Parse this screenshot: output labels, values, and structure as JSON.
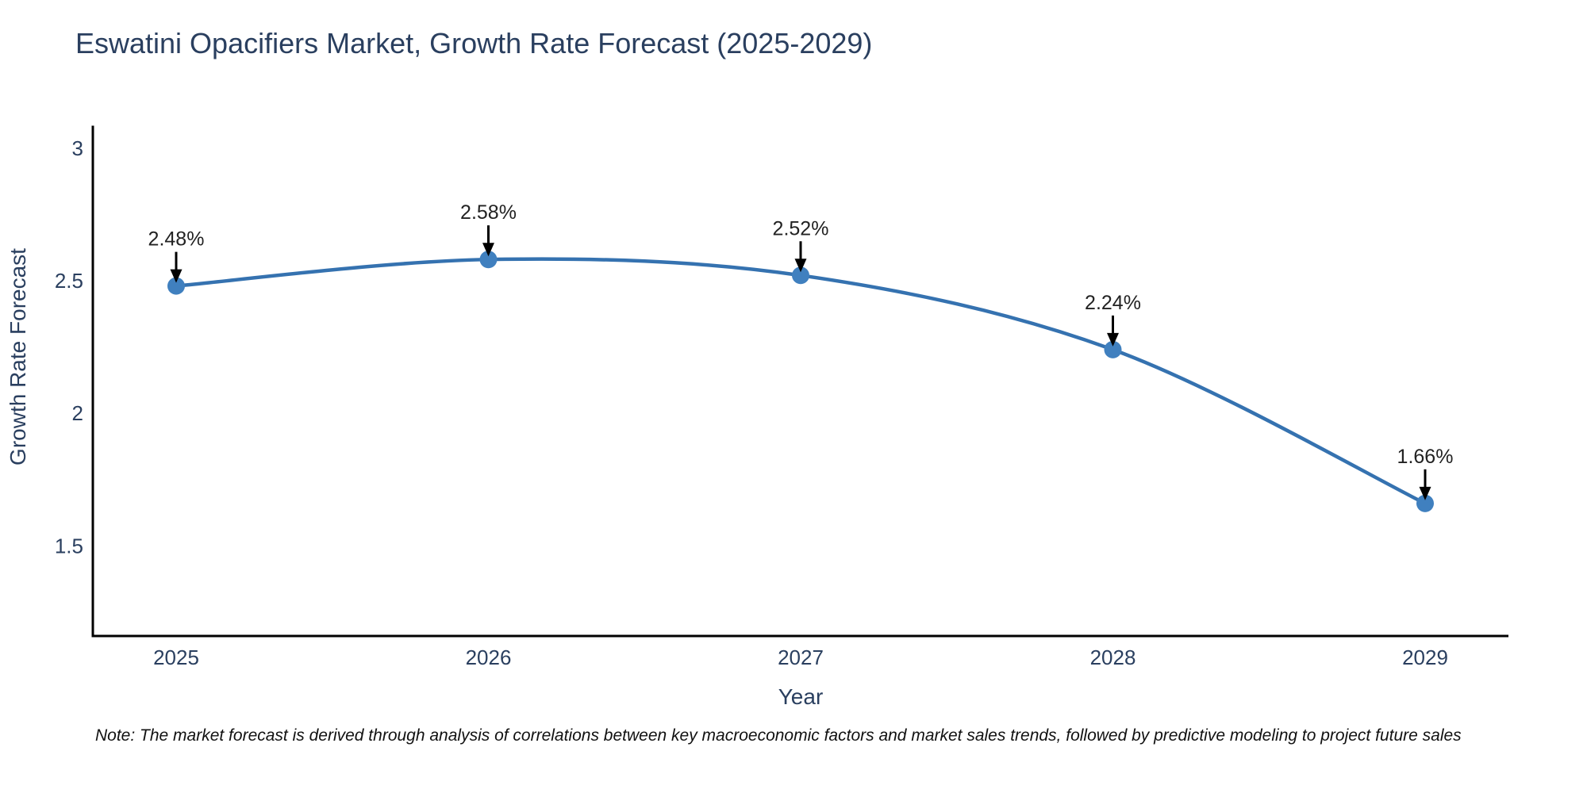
{
  "page": {
    "title": "Eswatini Opacifiers Market, Growth Rate Forecast (2025-2029)",
    "note": "Note: The market forecast is derived through analysis of correlations between key macroeconomic factors and market sales trends, followed by predictive modeling to project future sales"
  },
  "chart_data": {
    "type": "line",
    "title": "Eswatini Opacifiers Market, Growth Rate Forecast (2025-2029)",
    "xlabel": "Year",
    "ylabel": "Growth Rate Forecast",
    "categories": [
      "2025",
      "2026",
      "2027",
      "2028",
      "2029"
    ],
    "series": [
      {
        "name": "Growth Rate Forecast",
        "values": [
          2.48,
          2.58,
          2.52,
          2.24,
          1.66
        ]
      }
    ],
    "point_labels": [
      "2.48%",
      "2.58%",
      "2.52%",
      "2.24%",
      "1.66%"
    ],
    "yticks": [
      "1.5",
      "2",
      "2.5",
      "3"
    ],
    "ytick_values": [
      1.5,
      2,
      2.5,
      3
    ],
    "ylim": [
      1.16,
      3.08
    ],
    "line_shape": "spline",
    "grid": false,
    "legend": "none",
    "colors": {
      "line": "#3572b0",
      "marker": "#4080bf",
      "axis": "#000000",
      "axis_text": "#2a3f5f",
      "annotation": "#222222",
      "title": "#2a3f5f",
      "note": "#111111",
      "background": "#ffffff"
    }
  }
}
